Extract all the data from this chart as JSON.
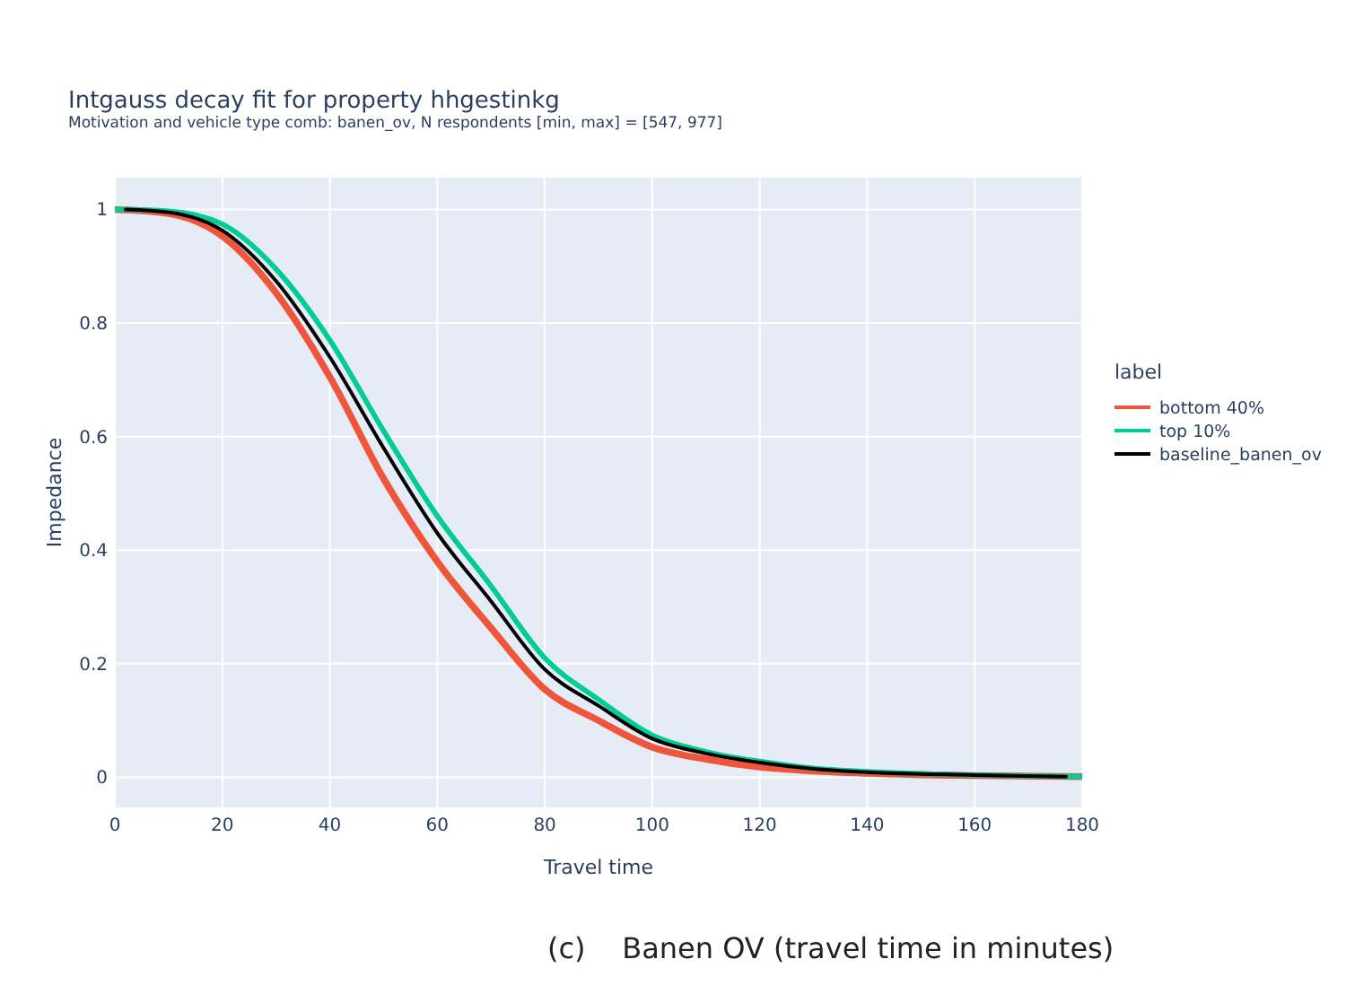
{
  "chart_data": {
    "type": "line",
    "title": "Intgauss decay fit for property hhgestinkg",
    "subtitle": "Motivation and vehicle type comb: banen_ov, N respondents [min, max] = [547, 977]",
    "xlabel": "Travel time",
    "ylabel": "Impedance",
    "legend_title": "label",
    "annotations": [
      "(c)    Banen OV (travel time in minutes)"
    ],
    "xlim": [
      0,
      180
    ],
    "ylim": [
      -0.053,
      1.056
    ],
    "xticks": [
      0,
      20,
      40,
      60,
      80,
      100,
      120,
      140,
      160,
      180
    ],
    "yticks": [
      0,
      0.2,
      0.4,
      0.6,
      0.8,
      1
    ],
    "grid": true,
    "legend": "right",
    "line_style": "solid",
    "marker": "none",
    "series": [
      {
        "name": "bottom 40%",
        "color": "#ef553b",
        "x": [
          0,
          10,
          20,
          30,
          40,
          50,
          60,
          70,
          80,
          90,
          100,
          110,
          120,
          130,
          140,
          160,
          180
        ],
        "values": [
          1,
          0.993,
          0.953,
          0.853,
          0.705,
          0.526,
          0.38,
          0.263,
          0.155,
          0.1,
          0.053,
          0.032,
          0.018,
          0.011,
          0.007,
          0.003,
          0.001
        ]
      },
      {
        "name": "top 10%",
        "color": "#00cc96",
        "x": [
          0,
          10,
          20,
          30,
          40,
          50,
          60,
          70,
          80,
          90,
          100,
          110,
          120,
          130,
          140,
          160,
          180
        ],
        "values": [
          1,
          0.997,
          0.974,
          0.895,
          0.77,
          0.61,
          0.46,
          0.337,
          0.21,
          0.137,
          0.074,
          0.045,
          0.028,
          0.016,
          0.01,
          0.004,
          0.001
        ]
      },
      {
        "name": "baseline_banen_ov",
        "color": "#000000",
        "x": [
          2,
          10,
          20,
          30,
          40,
          50,
          60,
          70,
          80,
          90,
          100,
          110,
          120,
          130,
          140,
          160,
          177
        ],
        "values": [
          1,
          0.995,
          0.963,
          0.874,
          0.74,
          0.58,
          0.43,
          0.31,
          0.19,
          0.126,
          0.068,
          0.042,
          0.026,
          0.015,
          0.009,
          0.004,
          0.001
        ]
      }
    ]
  }
}
